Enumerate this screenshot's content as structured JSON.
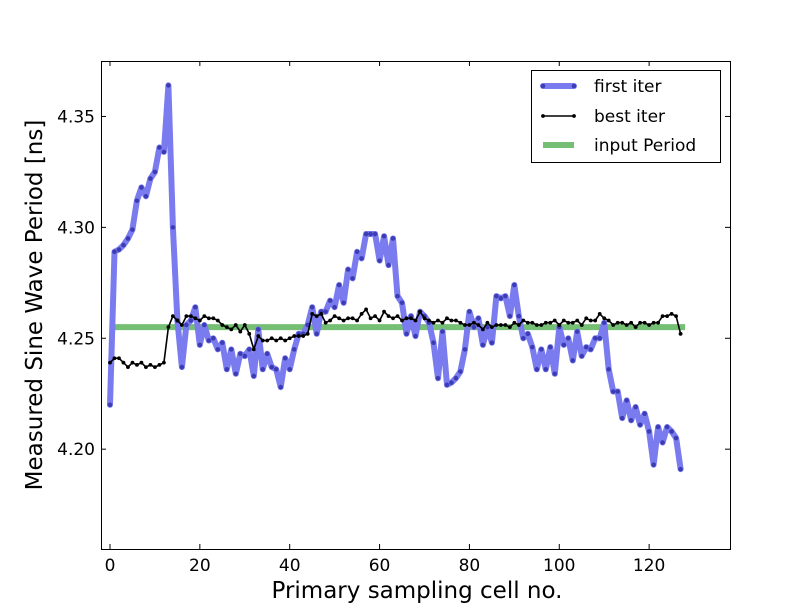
{
  "chart_data": {
    "type": "line",
    "title": "",
    "xlabel": "Primary sampling cell no.",
    "ylabel": "Measured Sine Wave Period [ns]",
    "xlim": [
      -2,
      138
    ],
    "ylim": [
      4.155,
      4.375
    ],
    "xticks": [
      0,
      20,
      40,
      60,
      80,
      100,
      120
    ],
    "yticks": [
      4.2,
      4.25,
      4.3,
      4.35
    ],
    "xtick_labels": [
      "0",
      "20",
      "40",
      "60",
      "80",
      "100",
      "120"
    ],
    "ytick_labels": [
      "4.20",
      "4.25",
      "4.30",
      "4.35"
    ],
    "grid": false,
    "legend_position": "top-right",
    "series": [
      {
        "name": "first iter",
        "color": "#7b7bf0",
        "marker_color": "#3c3cb4",
        "x": [
          0,
          1,
          2,
          3,
          4,
          5,
          6,
          7,
          8,
          9,
          10,
          11,
          12,
          13,
          14,
          15,
          16,
          17,
          18,
          19,
          20,
          21,
          22,
          23,
          24,
          25,
          26,
          27,
          28,
          29,
          30,
          31,
          32,
          33,
          34,
          35,
          36,
          37,
          38,
          39,
          40,
          41,
          42,
          43,
          44,
          45,
          46,
          47,
          48,
          49,
          50,
          51,
          52,
          53,
          54,
          55,
          56,
          57,
          58,
          59,
          60,
          61,
          62,
          63,
          64,
          65,
          66,
          67,
          68,
          69,
          70,
          71,
          72,
          73,
          74,
          75,
          76,
          77,
          78,
          79,
          80,
          81,
          82,
          83,
          84,
          85,
          86,
          87,
          88,
          89,
          90,
          91,
          92,
          93,
          94,
          95,
          96,
          97,
          98,
          99,
          100,
          101,
          102,
          103,
          104,
          105,
          106,
          107,
          108,
          109,
          110,
          111,
          112,
          113,
          114,
          115,
          116,
          117,
          118,
          119,
          120,
          121,
          122,
          123,
          124,
          125,
          126,
          127
        ],
        "y": [
          4.22,
          4.289,
          4.29,
          4.292,
          4.295,
          4.299,
          4.312,
          4.318,
          4.314,
          4.322,
          4.325,
          4.336,
          4.334,
          4.364,
          4.3,
          4.258,
          4.237,
          4.256,
          4.258,
          4.264,
          4.247,
          4.256,
          4.249,
          4.25,
          4.245,
          4.248,
          4.236,
          4.245,
          4.234,
          4.243,
          4.242,
          4.245,
          4.233,
          4.254,
          4.236,
          4.243,
          4.237,
          4.236,
          4.228,
          4.241,
          4.236,
          4.245,
          4.252,
          4.252,
          4.256,
          4.264,
          4.252,
          4.262,
          4.262,
          4.267,
          4.264,
          4.274,
          4.266,
          4.281,
          4.277,
          4.289,
          4.286,
          4.297,
          4.297,
          4.297,
          4.285,
          4.296,
          4.283,
          4.295,
          4.269,
          4.266,
          4.252,
          4.26,
          4.251,
          4.262,
          4.26,
          4.257,
          4.248,
          4.232,
          4.253,
          4.229,
          4.23,
          4.232,
          4.235,
          4.245,
          4.262,
          4.255,
          4.259,
          4.247,
          4.255,
          4.248,
          4.269,
          4.268,
          4.269,
          4.26,
          4.274,
          4.26,
          4.25,
          4.252,
          4.246,
          4.236,
          4.245,
          4.236,
          4.246,
          4.234,
          4.255,
          4.247,
          4.25,
          4.24,
          4.253,
          4.242,
          4.246,
          4.245,
          4.25,
          4.25,
          4.257,
          4.236,
          4.226,
          4.226,
          4.214,
          4.222,
          4.213,
          4.219,
          4.211,
          4.216,
          4.208,
          4.193,
          4.21,
          4.203,
          4.21,
          4.208,
          4.205,
          4.191
        ]
      },
      {
        "name": "best iter",
        "color": "#000000",
        "x": [
          0,
          1,
          2,
          3,
          4,
          5,
          6,
          7,
          8,
          9,
          10,
          11,
          12,
          13,
          14,
          15,
          16,
          17,
          18,
          19,
          20,
          21,
          22,
          23,
          24,
          25,
          26,
          27,
          28,
          29,
          30,
          31,
          32,
          33,
          34,
          35,
          36,
          37,
          38,
          39,
          40,
          41,
          42,
          43,
          44,
          45,
          46,
          47,
          48,
          49,
          50,
          51,
          52,
          53,
          54,
          55,
          56,
          57,
          58,
          59,
          60,
          61,
          62,
          63,
          64,
          65,
          66,
          67,
          68,
          69,
          70,
          71,
          72,
          73,
          74,
          75,
          76,
          77,
          78,
          79,
          80,
          81,
          82,
          83,
          84,
          85,
          86,
          87,
          88,
          89,
          90,
          91,
          92,
          93,
          94,
          95,
          96,
          97,
          98,
          99,
          100,
          101,
          102,
          103,
          104,
          105,
          106,
          107,
          108,
          109,
          110,
          111,
          112,
          113,
          114,
          115,
          116,
          117,
          118,
          119,
          120,
          121,
          122,
          123,
          124,
          125,
          126,
          127
        ],
        "y": [
          4.239,
          4.241,
          4.241,
          4.239,
          4.237,
          4.239,
          4.238,
          4.239,
          4.237,
          4.238,
          4.237,
          4.238,
          4.239,
          4.255,
          4.26,
          4.258,
          4.256,
          4.26,
          4.26,
          4.259,
          4.258,
          4.26,
          4.259,
          4.259,
          4.258,
          4.256,
          4.255,
          4.254,
          4.256,
          4.253,
          4.256,
          4.252,
          4.245,
          4.251,
          4.249,
          4.249,
          4.25,
          4.249,
          4.25,
          4.249,
          4.25,
          4.251,
          4.251,
          4.251,
          4.252,
          4.261,
          4.26,
          4.261,
          4.257,
          4.258,
          4.26,
          4.259,
          4.258,
          4.259,
          4.259,
          4.258,
          4.261,
          4.263,
          4.259,
          4.26,
          4.258,
          4.262,
          4.26,
          4.259,
          4.26,
          4.258,
          4.259,
          4.259,
          4.258,
          4.262,
          4.259,
          4.258,
          4.257,
          4.258,
          4.257,
          4.259,
          4.258,
          4.258,
          4.257,
          4.256,
          4.256,
          4.257,
          4.256,
          4.254,
          4.257,
          4.255,
          4.256,
          4.256,
          4.256,
          4.255,
          4.257,
          4.256,
          4.258,
          4.257,
          4.257,
          4.256,
          4.256,
          4.257,
          4.257,
          4.258,
          4.256,
          4.258,
          4.257,
          4.257,
          4.258,
          4.256,
          4.259,
          4.258,
          4.258,
          4.261,
          4.259,
          4.258,
          4.256,
          4.257,
          4.257,
          4.256,
          4.257,
          4.255,
          4.257,
          4.257,
          4.256,
          4.257,
          4.257,
          4.26,
          4.26,
          4.261,
          4.26,
          4.252
        ]
      },
      {
        "name": "input Period",
        "color": "#74bf74",
        "x": [
          0,
          128
        ],
        "y": [
          4.255,
          4.255
        ]
      }
    ]
  }
}
